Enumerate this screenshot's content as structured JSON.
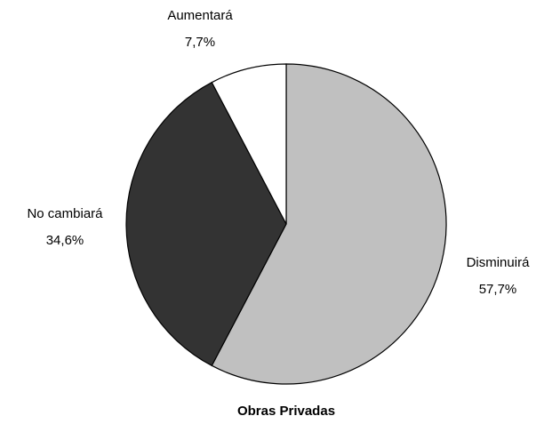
{
  "chart_data": {
    "type": "pie",
    "title": "Obras Privadas",
    "categories": [
      "Disminuirá",
      "No cambiará",
      "Aumentará"
    ],
    "values": [
      57.7,
      34.6,
      7.7
    ],
    "value_labels": [
      "57,7%",
      "34,6%",
      "7,7%"
    ],
    "colors": [
      "#c0c0c0",
      "#333333",
      "#ffffff"
    ]
  }
}
